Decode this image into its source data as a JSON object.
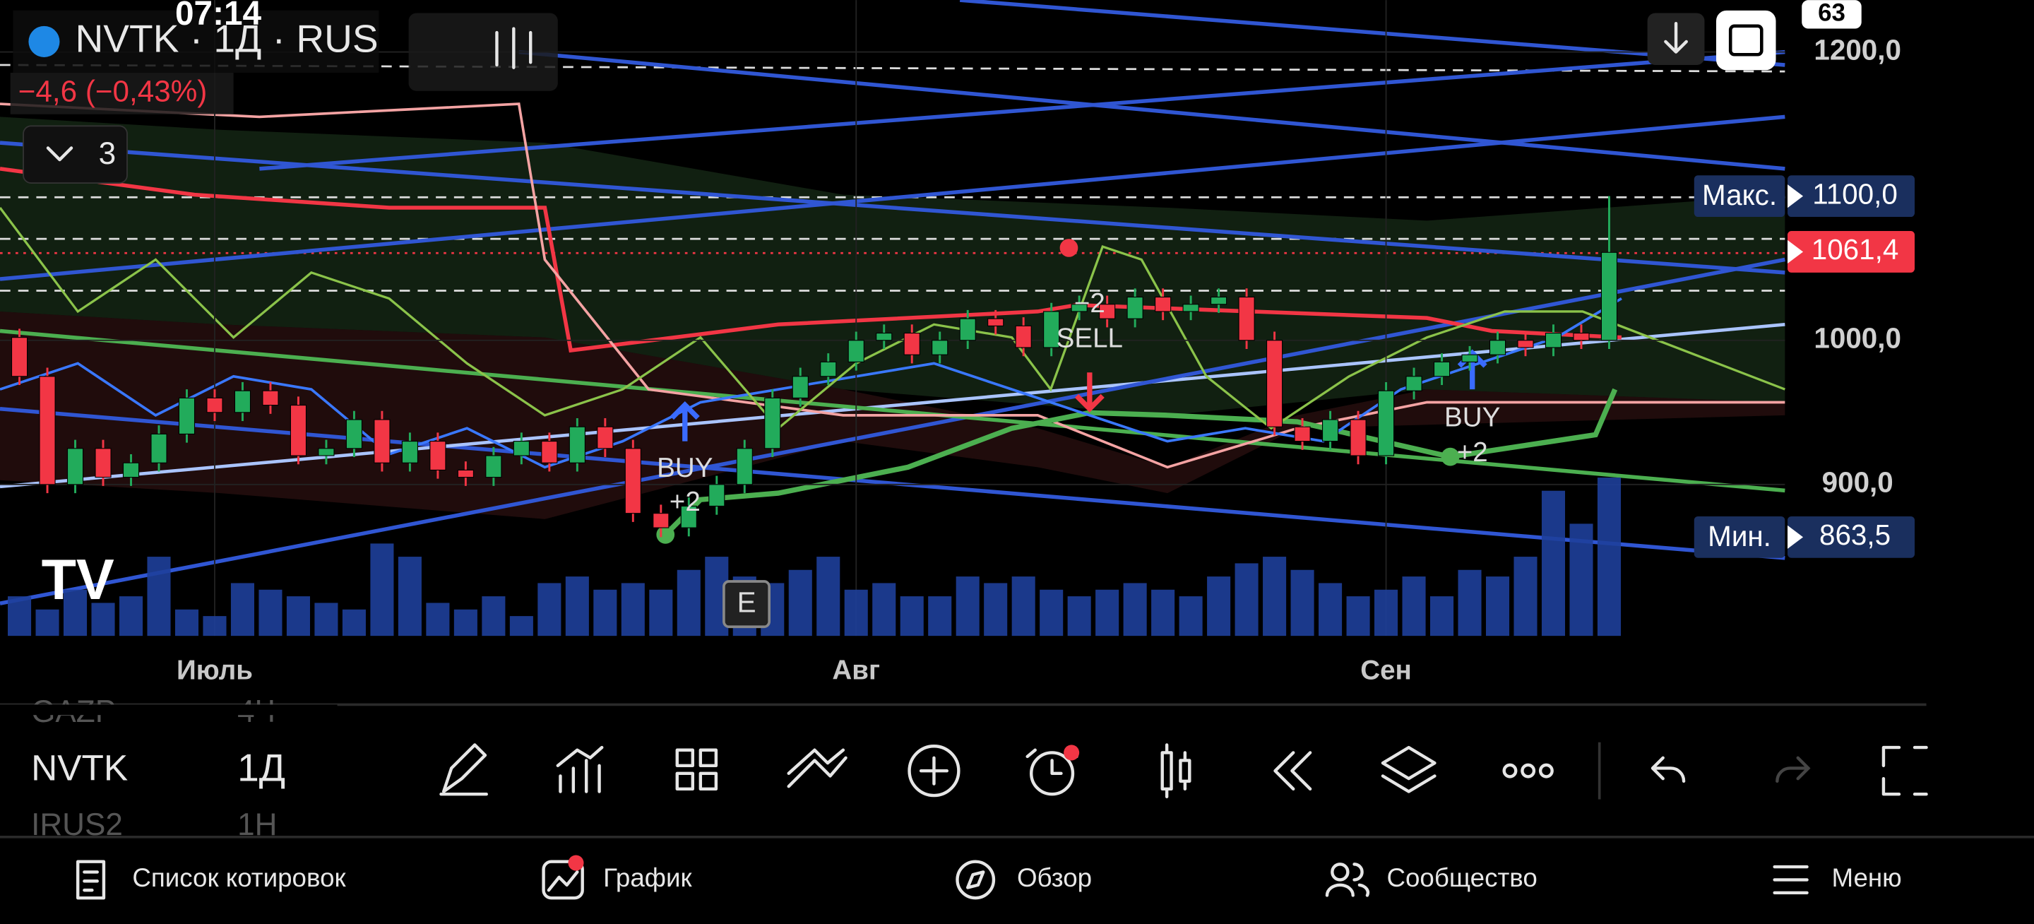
{
  "status": {
    "time": "07:14",
    "battery": "63"
  },
  "header": {
    "symbol": "NVTK · 1Д · RUS",
    "change": "−4,6 (−0,43%)",
    "indicators_count": "3",
    "earnings_badge": "E"
  },
  "chart_data": {
    "type": "candlestick",
    "categories": [
      null,
      null,
      null,
      null,
      null,
      null,
      null,
      "Июль",
      null,
      null,
      null,
      null,
      null,
      null,
      null,
      null,
      null,
      null,
      null,
      null,
      null,
      null,
      null,
      null,
      null,
      null,
      null,
      null,
      null,
      null,
      "Авг",
      null,
      null,
      null,
      null,
      null,
      null,
      null,
      null,
      null,
      null,
      null,
      null,
      null,
      null,
      null,
      null,
      null,
      null,
      "Сен",
      null,
      null,
      null,
      null,
      null,
      null,
      null,
      null
    ],
    "open": [
      1002,
      975,
      900,
      925,
      905,
      915,
      935,
      960,
      950,
      965,
      955,
      920,
      925,
      945,
      915,
      930,
      910,
      905,
      920,
      930,
      915,
      940,
      925,
      880,
      870,
      885,
      900,
      925,
      960,
      975,
      985,
      1000,
      1005,
      990,
      1000,
      1015,
      1010,
      995,
      1020,
      1025,
      1015,
      1030,
      1020,
      1025,
      1030,
      1000,
      940,
      930,
      945,
      920,
      965,
      975,
      985,
      990,
      1000,
      995,
      1005,
      1000
    ],
    "high": [
      1008,
      981,
      931,
      931,
      921,
      941,
      966,
      966,
      971,
      971,
      961,
      931,
      951,
      951,
      936,
      936,
      916,
      926,
      936,
      936,
      946,
      946,
      931,
      886,
      891,
      906,
      931,
      966,
      981,
      991,
      1006,
      1011,
      1011,
      1006,
      1021,
      1021,
      1016,
      1026,
      1031,
      1031,
      1036,
      1036,
      1031,
      1036,
      1036,
      1006,
      946,
      951,
      951,
      971,
      981,
      991,
      996,
      1006,
      1006,
      1011,
      1011,
      1100
    ],
    "low": [
      969,
      894,
      894,
      899,
      899,
      909,
      929,
      944,
      944,
      949,
      914,
      914,
      919,
      909,
      909,
      904,
      899,
      899,
      914,
      909,
      909,
      919,
      874,
      863.5,
      864,
      879,
      894,
      919,
      954,
      969,
      979,
      994,
      984,
      984,
      994,
      1004,
      989,
      989,
      1014,
      1009,
      1009,
      1014,
      1014,
      1019,
      994,
      934,
      924,
      924,
      914,
      914,
      959,
      969,
      979,
      984,
      989,
      989,
      994,
      994
    ],
    "close": [
      975,
      900,
      925,
      905,
      915,
      935,
      960,
      950,
      965,
      955,
      920,
      925,
      945,
      915,
      930,
      910,
      905,
      920,
      930,
      915,
      940,
      925,
      880,
      870,
      885,
      900,
      925,
      960,
      975,
      985,
      1000,
      1005,
      990,
      1000,
      1015,
      1010,
      995,
      1020,
      1025,
      1015,
      1030,
      1020,
      1025,
      1030,
      1000,
      940,
      930,
      945,
      920,
      965,
      975,
      985,
      990,
      1000,
      995,
      1005,
      1000,
      1061
    ],
    "volume": [
      30,
      20,
      35,
      25,
      30,
      60,
      20,
      15,
      40,
      35,
      30,
      25,
      20,
      70,
      60,
      25,
      20,
      30,
      15,
      40,
      45,
      35,
      40,
      35,
      50,
      60,
      45,
      40,
      50,
      60,
      35,
      40,
      30,
      30,
      45,
      40,
      45,
      35,
      30,
      35,
      40,
      35,
      30,
      45,
      55,
      60,
      50,
      40,
      30,
      35,
      45,
      30,
      50,
      45,
      60,
      110,
      85,
      120
    ],
    "up_color": "#22ab5b",
    "down_color": "#f23645",
    "volume_color": "#1e3f9a",
    "ylim": [
      795,
      1236
    ],
    "yticks": [
      {
        "value": 1200,
        "label": "1200,0"
      },
      {
        "value": 1000,
        "label": "1000,0"
      },
      {
        "value": 900,
        "label": "900,0"
      }
    ],
    "grid": true,
    "max": {
      "label": "Макс.",
      "value": 1100,
      "value_label": "1100,0"
    },
    "min": {
      "label": "Мин.",
      "value": 863.5,
      "value_label": "863,5"
    },
    "last": {
      "value": 1061.4,
      "value_label": "1061,4"
    },
    "signals": [
      {
        "text": "BUY",
        "qty": "+2"
      },
      {
        "text": "SELL",
        "qty": "−2"
      },
      {
        "text": "BUY",
        "qty": "+2"
      }
    ]
  },
  "toolbar": {
    "prev": {
      "symbol": "GAZP",
      "interval": "4Ч"
    },
    "current": {
      "symbol": "NVTK",
      "interval": "1Д"
    },
    "next": {
      "symbol": "IRUS2",
      "interval": "1Н"
    }
  },
  "nav": [
    "Список котировок",
    "График",
    "Обзор",
    "Сообщество",
    "Меню"
  ]
}
